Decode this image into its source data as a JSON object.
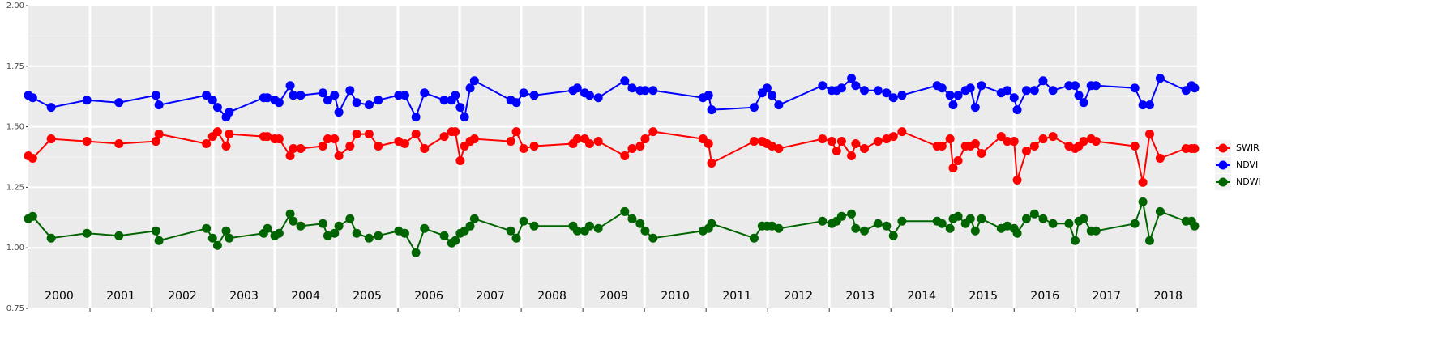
{
  "chart_data": {
    "type": "line",
    "x": [
      2000.0,
      2000.07,
      2000.37,
      2000.95,
      2001.47,
      2002.07,
      2002.12,
      2002.89,
      2002.99,
      2003.07,
      2003.21,
      2003.26,
      2003.82,
      2003.88,
      2004.0,
      2004.07,
      2004.25,
      2004.3,
      2004.42,
      2004.78,
      2004.86,
      2004.97,
      2005.04,
      2005.22,
      2005.33,
      2005.53,
      2005.68,
      2006.01,
      2006.11,
      2006.29,
      2006.43,
      2006.75,
      2006.87,
      2006.93,
      2007.01,
      2007.08,
      2007.17,
      2007.24,
      2007.83,
      2007.92,
      2008.04,
      2008.21,
      2008.84,
      2008.91,
      2009.03,
      2009.11,
      2009.25,
      2009.68,
      2009.8,
      2009.93,
      2010.01,
      2010.14,
      2010.95,
      2011.04,
      2011.09,
      2011.78,
      2011.91,
      2011.99,
      2012.07,
      2012.18,
      2012.89,
      2013.04,
      2013.12,
      2013.2,
      2013.36,
      2013.43,
      2013.57,
      2013.79,
      2013.93,
      2014.04,
      2014.18,
      2014.75,
      2014.83,
      2014.96,
      2015.01,
      2015.09,
      2015.21,
      2015.29,
      2015.37,
      2015.47,
      2015.79,
      2015.89,
      2016.0,
      2016.05,
      2016.2,
      2016.33,
      2016.47,
      2016.63,
      2016.89,
      2016.99,
      2017.05,
      2017.13,
      2017.25,
      2017.33,
      2017.96,
      2018.09,
      2018.2,
      2018.37,
      2018.79,
      2018.88,
      2018.93
    ],
    "series": [
      {
        "name": "SWIR",
        "color": "#ff0000",
        "values": [
          1.38,
          1.37,
          1.45,
          1.44,
          1.43,
          1.44,
          1.47,
          1.43,
          1.46,
          1.48,
          1.42,
          1.47,
          1.46,
          1.46,
          1.45,
          1.45,
          1.38,
          1.41,
          1.41,
          1.42,
          1.45,
          1.45,
          1.38,
          1.42,
          1.47,
          1.47,
          1.42,
          1.44,
          1.43,
          1.47,
          1.41,
          1.46,
          1.48,
          1.48,
          1.36,
          1.42,
          1.44,
          1.45,
          1.44,
          1.48,
          1.41,
          1.42,
          1.43,
          1.45,
          1.45,
          1.43,
          1.44,
          1.38,
          1.41,
          1.42,
          1.45,
          1.48,
          1.45,
          1.43,
          1.35,
          1.44,
          1.44,
          1.43,
          1.42,
          1.41,
          1.45,
          1.44,
          1.4,
          1.44,
          1.38,
          1.43,
          1.41,
          1.44,
          1.45,
          1.46,
          1.48,
          1.42,
          1.42,
          1.45,
          1.33,
          1.36,
          1.42,
          1.42,
          1.43,
          1.39,
          1.46,
          1.44,
          1.44,
          1.28,
          1.4,
          1.42,
          1.45,
          1.46,
          1.42,
          1.41,
          1.42,
          1.44,
          1.45,
          1.44,
          1.42,
          1.27,
          1.47,
          1.37,
          1.41,
          1.41,
          1.41
        ]
      },
      {
        "name": "NDVI",
        "color": "#0000ff",
        "values": [
          1.63,
          1.62,
          1.58,
          1.61,
          1.6,
          1.63,
          1.59,
          1.63,
          1.61,
          1.58,
          1.54,
          1.56,
          1.62,
          1.62,
          1.61,
          1.6,
          1.67,
          1.63,
          1.63,
          1.64,
          1.61,
          1.63,
          1.56,
          1.65,
          1.6,
          1.59,
          1.61,
          1.63,
          1.63,
          1.54,
          1.64,
          1.61,
          1.61,
          1.63,
          1.58,
          1.54,
          1.66,
          1.69,
          1.61,
          1.6,
          1.64,
          1.63,
          1.65,
          1.66,
          1.64,
          1.63,
          1.62,
          1.69,
          1.66,
          1.65,
          1.65,
          1.65,
          1.62,
          1.63,
          1.57,
          1.58,
          1.64,
          1.66,
          1.63,
          1.59,
          1.67,
          1.65,
          1.65,
          1.66,
          1.7,
          1.67,
          1.65,
          1.65,
          1.64,
          1.62,
          1.63,
          1.67,
          1.66,
          1.63,
          1.59,
          1.63,
          1.65,
          1.66,
          1.58,
          1.67,
          1.64,
          1.65,
          1.62,
          1.57,
          1.65,
          1.65,
          1.69,
          1.65,
          1.67,
          1.67,
          1.63,
          1.6,
          1.67,
          1.67,
          1.66,
          1.59,
          1.59,
          1.7,
          1.65,
          1.67,
          1.66
        ]
      },
      {
        "name": "NDWI",
        "color": "#006400",
        "values": [
          1.12,
          1.13,
          1.04,
          1.06,
          1.05,
          1.07,
          1.03,
          1.08,
          1.04,
          1.01,
          1.07,
          1.04,
          1.06,
          1.08,
          1.05,
          1.06,
          1.14,
          1.11,
          1.09,
          1.1,
          1.05,
          1.06,
          1.09,
          1.12,
          1.06,
          1.04,
          1.05,
          1.07,
          1.06,
          0.98,
          1.08,
          1.05,
          1.02,
          1.03,
          1.06,
          1.07,
          1.09,
          1.12,
          1.07,
          1.04,
          1.11,
          1.09,
          1.09,
          1.07,
          1.07,
          1.09,
          1.08,
          1.15,
          1.12,
          1.1,
          1.07,
          1.04,
          1.07,
          1.08,
          1.1,
          1.04,
          1.09,
          1.09,
          1.09,
          1.08,
          1.11,
          1.1,
          1.11,
          1.13,
          1.14,
          1.08,
          1.07,
          1.1,
          1.09,
          1.05,
          1.11,
          1.11,
          1.1,
          1.08,
          1.12,
          1.13,
          1.1,
          1.12,
          1.07,
          1.12,
          1.08,
          1.09,
          1.08,
          1.06,
          1.12,
          1.14,
          1.12,
          1.1,
          1.1,
          1.03,
          1.11,
          1.12,
          1.07,
          1.07,
          1.1,
          1.19,
          1.03,
          1.15,
          1.11,
          1.11,
          1.09
        ]
      }
    ],
    "xlim": [
      2000,
      2018.97
    ],
    "xticks": [
      2001,
      2002,
      2003,
      2004,
      2005,
      2006,
      2007,
      2008,
      2009,
      2010,
      2011,
      2012,
      2013,
      2014,
      2015,
      2016,
      2017,
      2018
    ],
    "year_labels": [
      "2000",
      "2001",
      "2002",
      "2003",
      "2004",
      "2005",
      "2006",
      "2007",
      "2008",
      "2009",
      "2010",
      "2011",
      "2012",
      "2013",
      "2014",
      "2015",
      "2016",
      "2017",
      "2018"
    ],
    "ylim": [
      0.75,
      2.0
    ],
    "yticks": [
      {
        "value": 0.75,
        "label": "0.75"
      },
      {
        "value": 1.0,
        "label": "1.00"
      },
      {
        "value": 1.25,
        "label": "1.25"
      },
      {
        "value": 1.5,
        "label": "1.50"
      },
      {
        "value": 1.75,
        "label": "1.75"
      },
      {
        "value": 2.0,
        "label": "2.00"
      }
    ],
    "grid": true
  }
}
